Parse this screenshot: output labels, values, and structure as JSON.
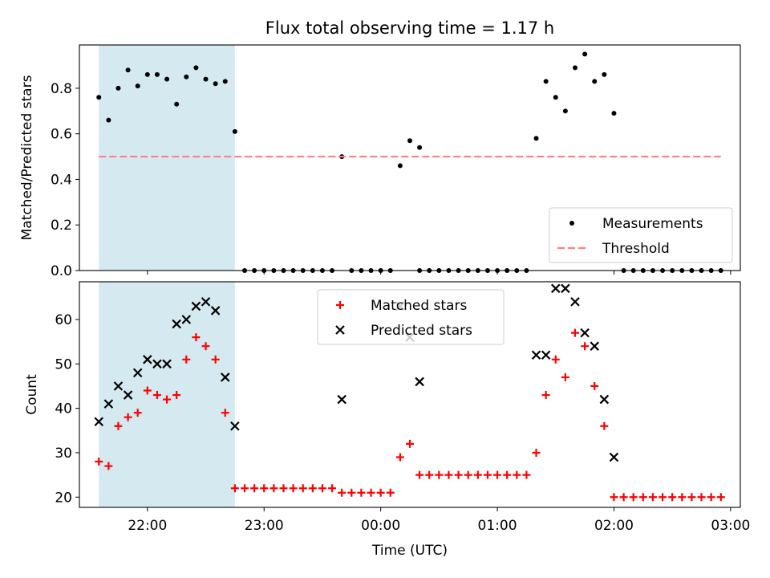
{
  "chart_data": [
    {
      "type": "scatter",
      "title": "Flux total observing time = 1.17 h",
      "xlabel": "",
      "ylabel": "Matched/Predicted stars",
      "ylim": [
        0,
        0.99
      ],
      "yticks": [
        0.0,
        0.2,
        0.4,
        0.6,
        0.8
      ],
      "ytick_labels": [
        "0.0",
        "0.2",
        "0.4",
        "0.6",
        "0.8"
      ],
      "xlim": [
        "21:25",
        "03:05"
      ],
      "x_tick_times": [
        "22:00",
        "23:00",
        "00:00",
        "01:00",
        "02:00",
        "03:00"
      ],
      "shaded_span": {
        "start": "21:35",
        "end": "22:45",
        "color": "#d4eaf0"
      },
      "legend_position": "lower right",
      "series": [
        {
          "name": "Measurements",
          "marker": "dot",
          "color": "#000000",
          "points": [
            [
              "21:35",
              0.76
            ],
            [
              "21:40",
              0.66
            ],
            [
              "21:45",
              0.8
            ],
            [
              "21:50",
              0.88
            ],
            [
              "21:55",
              0.81
            ],
            [
              "22:00",
              0.86
            ],
            [
              "22:05",
              0.86
            ],
            [
              "22:10",
              0.84
            ],
            [
              "22:15",
              0.73
            ],
            [
              "22:20",
              0.85
            ],
            [
              "22:25",
              0.89
            ],
            [
              "22:30",
              0.84
            ],
            [
              "22:35",
              0.82
            ],
            [
              "22:40",
              0.83
            ],
            [
              "22:45",
              0.61
            ],
            [
              "22:50",
              0.0
            ],
            [
              "22:55",
              0.0
            ],
            [
              "23:00",
              0.0
            ],
            [
              "23:05",
              0.0
            ],
            [
              "23:10",
              0.0
            ],
            [
              "23:15",
              0.0
            ],
            [
              "23:20",
              0.0
            ],
            [
              "23:25",
              0.0
            ],
            [
              "23:30",
              0.0
            ],
            [
              "23:35",
              0.0
            ],
            [
              "23:40",
              0.5
            ],
            [
              "23:45",
              0.0
            ],
            [
              "23:50",
              0.0
            ],
            [
              "23:55",
              0.0
            ],
            [
              "00:00",
              0.0
            ],
            [
              "00:05",
              0.0
            ],
            [
              "00:10",
              0.46
            ],
            [
              "00:15",
              0.57
            ],
            [
              "00:20",
              0.54
            ],
            [
              "00:20",
              0.0
            ],
            [
              "00:25",
              0.0
            ],
            [
              "00:30",
              0.0
            ],
            [
              "00:35",
              0.0
            ],
            [
              "00:40",
              0.0
            ],
            [
              "00:45",
              0.0
            ],
            [
              "00:50",
              0.0
            ],
            [
              "00:55",
              0.0
            ],
            [
              "01:00",
              0.0
            ],
            [
              "01:05",
              0.0
            ],
            [
              "01:10",
              0.0
            ],
            [
              "01:15",
              0.0
            ],
            [
              "01:20",
              0.58
            ],
            [
              "01:25",
              0.83
            ],
            [
              "01:30",
              0.76
            ],
            [
              "01:35",
              0.7
            ],
            [
              "01:40",
              0.89
            ],
            [
              "01:45",
              0.95
            ],
            [
              "01:50",
              0.83
            ],
            [
              "01:55",
              0.86
            ],
            [
              "02:00",
              0.69
            ],
            [
              "02:05",
              0.0
            ],
            [
              "02:10",
              0.0
            ],
            [
              "02:15",
              0.0
            ],
            [
              "02:20",
              0.0
            ],
            [
              "02:25",
              0.0
            ],
            [
              "02:30",
              0.0
            ],
            [
              "02:35",
              0.0
            ],
            [
              "02:40",
              0.0
            ],
            [
              "02:45",
              0.0
            ],
            [
              "02:50",
              0.0
            ],
            [
              "02:55",
              0.0
            ]
          ]
        },
        {
          "name": "Threshold",
          "marker": "dashed-line",
          "color": "#ff7f7f",
          "points": [
            [
              "21:35",
              0.5
            ],
            [
              "02:55",
              0.5
            ]
          ]
        }
      ]
    },
    {
      "type": "scatter",
      "title": "",
      "xlabel": "Time (UTC)",
      "ylabel": "Count",
      "ylim": [
        17.7,
        68.5
      ],
      "yticks": [
        20,
        30,
        40,
        50,
        60
      ],
      "ytick_labels": [
        "20",
        "30",
        "40",
        "50",
        "60"
      ],
      "xlim": [
        "21:25",
        "03:05"
      ],
      "x_tick_times": [
        "22:00",
        "23:00",
        "00:00",
        "01:00",
        "02:00",
        "03:00"
      ],
      "x_tick_labels": [
        "22:00",
        "23:00",
        "00:00",
        "01:00",
        "02:00",
        "03:00"
      ],
      "shaded_span": {
        "start": "21:35",
        "end": "22:45",
        "color": "#d4eaf0"
      },
      "legend_position": "upper center",
      "series": [
        {
          "name": "Matched stars",
          "marker": "plus",
          "color": "#ff0000",
          "points": [
            [
              "21:35",
              28
            ],
            [
              "21:40",
              27
            ],
            [
              "21:45",
              36
            ],
            [
              "21:50",
              38
            ],
            [
              "21:55",
              39
            ],
            [
              "22:00",
              44
            ],
            [
              "22:05",
              43
            ],
            [
              "22:10",
              42
            ],
            [
              "22:15",
              43
            ],
            [
              "22:20",
              51
            ],
            [
              "22:25",
              56
            ],
            [
              "22:30",
              54
            ],
            [
              "22:35",
              51
            ],
            [
              "22:40",
              39
            ],
            [
              "22:45",
              22
            ],
            [
              "22:50",
              22
            ],
            [
              "22:55",
              22
            ],
            [
              "23:00",
              22
            ],
            [
              "23:05",
              22
            ],
            [
              "23:10",
              22
            ],
            [
              "23:15",
              22
            ],
            [
              "23:20",
              22
            ],
            [
              "23:25",
              22
            ],
            [
              "23:30",
              22
            ],
            [
              "23:35",
              22
            ],
            [
              "23:40",
              21
            ],
            [
              "23:45",
              21
            ],
            [
              "23:50",
              21
            ],
            [
              "23:55",
              21
            ],
            [
              "00:00",
              21
            ],
            [
              "00:05",
              21
            ],
            [
              "00:10",
              29
            ],
            [
              "00:15",
              32
            ],
            [
              "00:20",
              25
            ],
            [
              "00:25",
              25
            ],
            [
              "00:30",
              25
            ],
            [
              "00:35",
              25
            ],
            [
              "00:40",
              25
            ],
            [
              "00:45",
              25
            ],
            [
              "00:50",
              25
            ],
            [
              "00:55",
              25
            ],
            [
              "01:00",
              25
            ],
            [
              "01:05",
              25
            ],
            [
              "01:10",
              25
            ],
            [
              "01:15",
              25
            ],
            [
              "01:20",
              30
            ],
            [
              "01:25",
              43
            ],
            [
              "01:30",
              51
            ],
            [
              "01:35",
              47
            ],
            [
              "01:40",
              57
            ],
            [
              "01:45",
              54
            ],
            [
              "01:50",
              45
            ],
            [
              "01:55",
              36
            ],
            [
              "02:00",
              20
            ],
            [
              "02:05",
              20
            ],
            [
              "02:10",
              20
            ],
            [
              "02:15",
              20
            ],
            [
              "02:20",
              20
            ],
            [
              "02:25",
              20
            ],
            [
              "02:30",
              20
            ],
            [
              "02:35",
              20
            ],
            [
              "02:40",
              20
            ],
            [
              "02:45",
              20
            ],
            [
              "02:50",
              20
            ],
            [
              "02:55",
              20
            ]
          ]
        },
        {
          "name": "Predicted stars",
          "marker": "x",
          "color": "#000000",
          "points": [
            [
              "21:35",
              37
            ],
            [
              "21:40",
              41
            ],
            [
              "21:45",
              45
            ],
            [
              "21:50",
              43
            ],
            [
              "21:55",
              48
            ],
            [
              "22:00",
              51
            ],
            [
              "22:05",
              50
            ],
            [
              "22:10",
              50
            ],
            [
              "22:15",
              59
            ],
            [
              "22:20",
              60
            ],
            [
              "22:25",
              63
            ],
            [
              "22:30",
              64
            ],
            [
              "22:35",
              62
            ],
            [
              "22:40",
              47
            ],
            [
              "22:45",
              36
            ],
            [
              "23:40",
              42
            ],
            [
              "00:10",
              63
            ],
            [
              "00:15",
              56
            ],
            [
              "00:20",
              46
            ],
            [
              "01:20",
              52
            ],
            [
              "01:25",
              52
            ],
            [
              "01:30",
              67
            ],
            [
              "01:35",
              67
            ],
            [
              "01:40",
              64
            ],
            [
              "01:45",
              57
            ],
            [
              "01:50",
              54
            ],
            [
              "01:55",
              42
            ],
            [
              "02:00",
              29
            ]
          ]
        }
      ]
    }
  ]
}
